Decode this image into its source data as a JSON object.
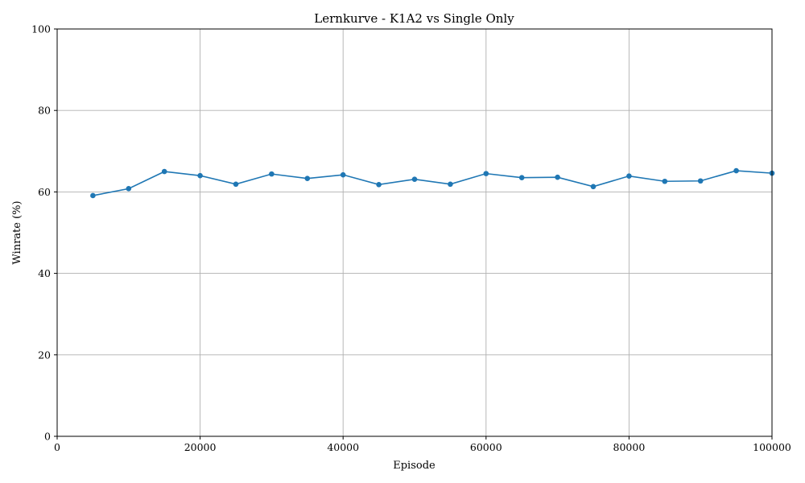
{
  "chart_data": {
    "type": "line",
    "title": "Lernkurve - K1A2 vs Single Only",
    "xlabel": "Episode",
    "ylabel": "Winrate (%)",
    "xlim": [
      0,
      100000
    ],
    "ylim": [
      0,
      100
    ],
    "xticks": [
      0,
      20000,
      40000,
      60000,
      80000,
      100000
    ],
    "yticks": [
      0,
      20,
      40,
      60,
      80,
      100
    ],
    "grid": true,
    "series": [
      {
        "color": "#1f77b4",
        "marker": "circle",
        "x": [
          5000,
          10000,
          15000,
          20000,
          25000,
          30000,
          35000,
          40000,
          45000,
          50000,
          55000,
          60000,
          65000,
          70000,
          75000,
          80000,
          85000,
          90000,
          95000,
          100000
        ],
        "y": [
          59.1,
          60.8,
          65.0,
          64.0,
          61.9,
          64.4,
          63.3,
          64.2,
          61.8,
          63.1,
          61.9,
          64.5,
          63.5,
          63.6,
          61.3,
          63.9,
          62.6,
          62.7,
          65.2,
          64.6
        ]
      }
    ]
  }
}
